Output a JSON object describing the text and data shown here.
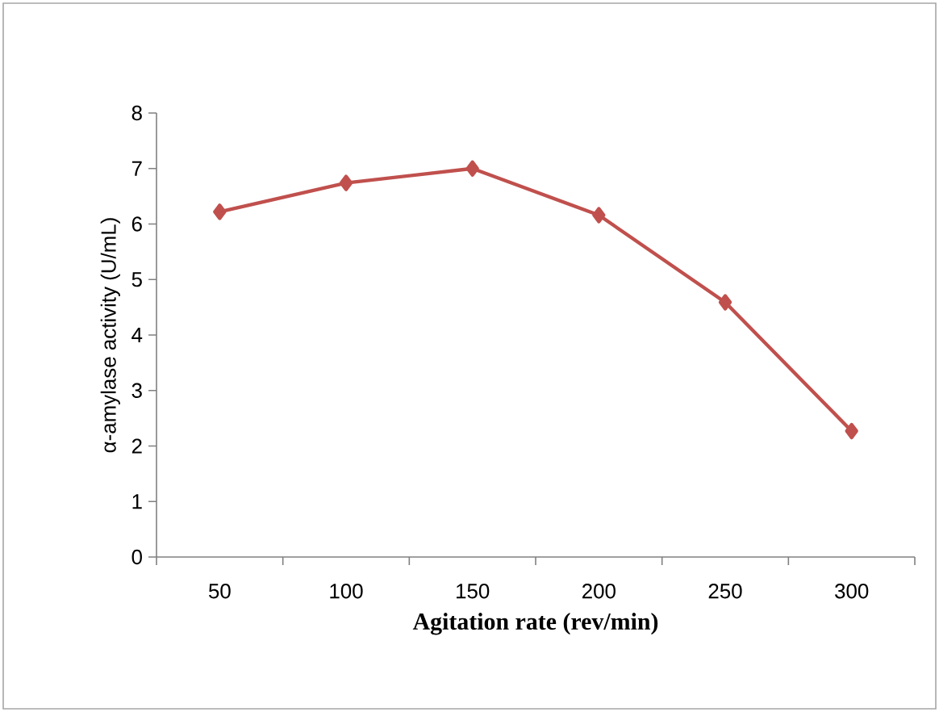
{
  "chart_data": {
    "type": "line",
    "xlabel": "Agitation rate (rev/min)",
    "ylabel": "α-amylase activity (U/mL)",
    "categories": [
      "50",
      "100",
      "150",
      "200",
      "250",
      "300"
    ],
    "series": [
      {
        "color": "#c0504d",
        "values": [
          6.22,
          6.74,
          7.0,
          6.16,
          4.59,
          2.27
        ]
      }
    ],
    "ylim": [
      0,
      8
    ],
    "yticks": [
      0,
      1,
      2,
      3,
      4,
      5,
      6,
      7,
      8
    ],
    "grid": false,
    "marker": "diamond",
    "line_style": "solid"
  }
}
